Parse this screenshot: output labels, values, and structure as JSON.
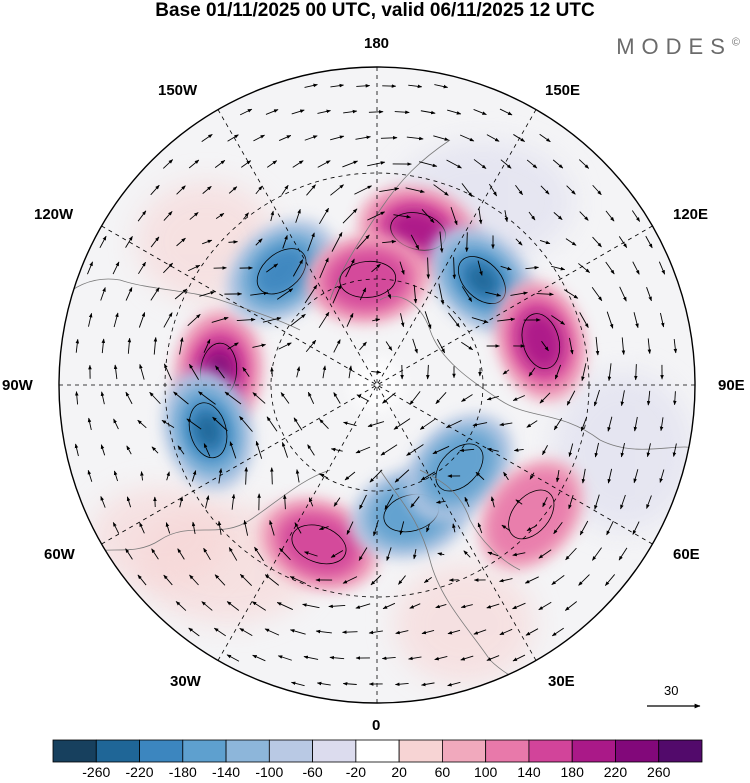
{
  "title": "Base 01/11/2025 00 UTC, valid 06/11/2025 12 UTC",
  "brand": "MODES",
  "brand_mark": "©",
  "longitude_labels": {
    "lon_180": "180",
    "lon_150e": "150E",
    "lon_120e": "120E",
    "lon_90e": "90E",
    "lon_60e": "60E",
    "lon_30e": "30E",
    "lon_0": "0",
    "lon_30w": "30W",
    "lon_60w": "60W",
    "lon_90w": "90W",
    "lon_120w": "120W",
    "lon_150w": "150W"
  },
  "reference_vector": {
    "label": "30"
  },
  "colorbar": {
    "ticks": [
      "-260",
      "-220",
      "-180",
      "-140",
      "-100",
      "-60",
      "-20",
      "20",
      "60",
      "100",
      "140",
      "180",
      "220",
      "260"
    ],
    "colors": [
      "#17405e",
      "#1f6697",
      "#3c86bf",
      "#5ea0cf",
      "#8db6da",
      "#b9c9e4",
      "#dcdcee",
      "#ffffff",
      "#f7d4d4",
      "#f1a9bd",
      "#e879aa",
      "#d2449a",
      "#aa1988",
      "#82087a",
      "#520a6b"
    ]
  },
  "chart_data": {
    "type": "heatmap",
    "projection": "north polar stereographic",
    "title": "Base 01/11/2025 00 UTC, valid 06/11/2025 12 UTC",
    "field_units_levels": [
      -260,
      -220,
      -180,
      -140,
      -100,
      -60,
      -20,
      20,
      60,
      100,
      140,
      180,
      220,
      260
    ],
    "vector_reference": 30,
    "anomalies": [
      {
        "name": "positive-center-east-siberia",
        "value": 180,
        "lon": 165,
        "colat": 30
      },
      {
        "name": "negative-center-kamchatka",
        "value": -220,
        "lon": 135,
        "colat": 28
      },
      {
        "name": "positive-center-central-siberia",
        "value": 180,
        "lon": 105,
        "colat": 32
      },
      {
        "name": "positive-center-canada",
        "value": 220,
        "lon": -95,
        "colat": 30
      },
      {
        "name": "negative-center-hudson-labrador",
        "value": -220,
        "lon": -75,
        "colat": 33
      },
      {
        "name": "negative-center-alaska",
        "value": -180,
        "lon": -140,
        "colat": 28
      },
      {
        "name": "positive-center-north-atlantic",
        "value": 140,
        "lon": -20,
        "colat": 32
      },
      {
        "name": "negative-center-scandinavia",
        "value": -140,
        "lon": 15,
        "colat": 25
      },
      {
        "name": "negative-center-barents",
        "value": -140,
        "lon": 45,
        "colat": 22
      },
      {
        "name": "positive-center-west-siberia",
        "value": 100,
        "lon": 50,
        "colat": 38
      },
      {
        "name": "positive-center-chukchi",
        "value": 140,
        "lon": -175,
        "colat": 20
      }
    ]
  }
}
